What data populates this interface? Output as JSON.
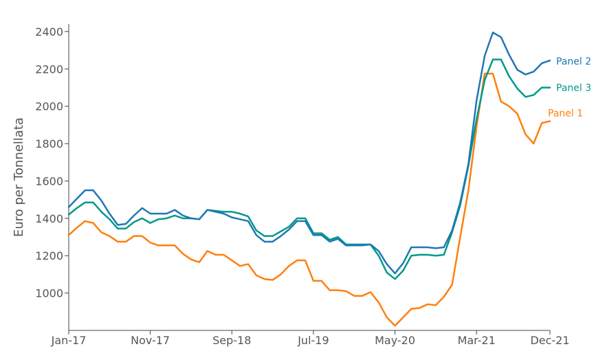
{
  "chart_data": {
    "type": "line",
    "title": "",
    "xlabel": "",
    "ylabel": "Euro per Tonnellata",
    "ylim": [
      800,
      2440
    ],
    "xlim": [
      0,
      59
    ],
    "yticks": [
      1000,
      1200,
      1400,
      1600,
      1800,
      2000,
      2200,
      2400
    ],
    "x_ticks": [
      {
        "label": "Jan-17",
        "index": 0
      },
      {
        "label": "Nov-17",
        "index": 10
      },
      {
        "label": "Sep-18",
        "index": 20
      },
      {
        "label": "Jul-19",
        "index": 30
      },
      {
        "label": "May-20",
        "index": 40
      },
      {
        "label": "Mar-21",
        "index": 50
      },
      {
        "label": "Dec-21",
        "index": 59
      }
    ],
    "x": [
      "Jan-17",
      "Feb-17",
      "Mar-17",
      "Apr-17",
      "May-17",
      "Jun-17",
      "Jul-17",
      "Aug-17",
      "Sep-17",
      "Oct-17",
      "Nov-17",
      "Dec-17",
      "Jan-18",
      "Feb-18",
      "Mar-18",
      "Apr-18",
      "May-18",
      "Jun-18",
      "Jul-18",
      "Aug-18",
      "Sep-18",
      "Oct-18",
      "Nov-18",
      "Dec-18",
      "Jan-19",
      "Feb-19",
      "Mar-19",
      "Apr-19",
      "May-19",
      "Jun-19",
      "Jul-19",
      "Aug-19",
      "Sep-19",
      "Oct-19",
      "Nov-19",
      "Dec-19",
      "Jan-20",
      "Feb-20",
      "Mar-20",
      "Apr-20",
      "May-20",
      "Jun-20",
      "Jul-20",
      "Aug-20",
      "Sep-20",
      "Oct-20",
      "Nov-20",
      "Dec-20",
      "Jan-21",
      "Feb-21",
      "Mar-21",
      "Apr-21",
      "May-21",
      "Jun-21",
      "Jul-21",
      "Aug-21",
      "Sep-21",
      "Oct-21",
      "Nov-21",
      "Dec-21"
    ],
    "series": [
      {
        "name": "Panel 2",
        "color": "#1f77b4",
        "values": [
          1460,
          1505,
          1550,
          1550,
          1495,
          1425,
          1365,
          1370,
          1415,
          1455,
          1425,
          1425,
          1425,
          1445,
          1415,
          1400,
          1395,
          1445,
          1435,
          1425,
          1405,
          1395,
          1385,
          1310,
          1275,
          1275,
          1305,
          1340,
          1385,
          1385,
          1310,
          1310,
          1275,
          1290,
          1255,
          1255,
          1255,
          1260,
          1225,
          1155,
          1105,
          1160,
          1245,
          1245,
          1245,
          1240,
          1245,
          1335,
          1485,
          1690,
          2030,
          2270,
          2395,
          2370,
          2275,
          2195,
          2170,
          2185,
          2230,
          2245
        ]
      },
      {
        "name": "Panel 3",
        "color": "#009988",
        "values": [
          1420,
          1455,
          1485,
          1485,
          1435,
          1395,
          1345,
          1345,
          1380,
          1400,
          1375,
          1395,
          1400,
          1415,
          1400,
          1400,
          1395,
          1445,
          1440,
          1435,
          1435,
          1425,
          1410,
          1335,
          1305,
          1305,
          1330,
          1355,
          1400,
          1400,
          1320,
          1320,
          1285,
          1300,
          1260,
          1260,
          1260,
          1260,
          1200,
          1110,
          1075,
          1120,
          1200,
          1205,
          1205,
          1200,
          1205,
          1325,
          1470,
          1680,
          1930,
          2140,
          2250,
          2250,
          2160,
          2095,
          2050,
          2060,
          2100,
          2100
        ]
      },
      {
        "name": "Panel 1",
        "color": "#ff7f0e",
        "values": [
          1310,
          1350,
          1385,
          1375,
          1325,
          1305,
          1275,
          1275,
          1305,
          1305,
          1270,
          1255,
          1255,
          1255,
          1210,
          1180,
          1165,
          1225,
          1205,
          1205,
          1175,
          1145,
          1155,
          1095,
          1075,
          1070,
          1100,
          1145,
          1175,
          1175,
          1065,
          1065,
          1015,
          1015,
          1010,
          985,
          985,
          1005,
          950,
          870,
          825,
          870,
          915,
          920,
          940,
          935,
          980,
          1045,
          1300,
          1550,
          1890,
          2175,
          2175,
          2025,
          2000,
          1960,
          1850,
          1800,
          1910,
          1920
        ]
      }
    ],
    "legend": "inline labels at line ends",
    "grid": false
  }
}
